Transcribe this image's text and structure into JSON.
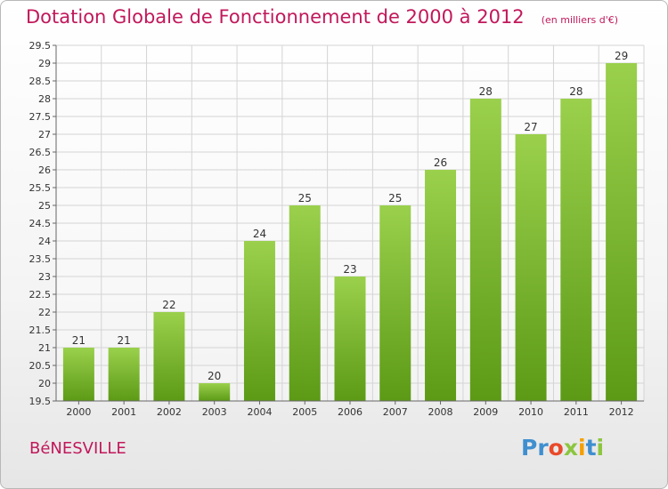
{
  "header": {
    "title": "Dotation Globale de Fonctionnement de 2000 à 2012",
    "unit": "(en milliers d'€)"
  },
  "footer": {
    "commune": "BéNESVILLE",
    "logo_letters": [
      "P",
      "r",
      "o",
      "x",
      "i",
      "t",
      "i"
    ],
    "logo_colors": [
      "#3f8fcf",
      "#3f8fcf",
      "#e94a2a",
      "#8cc63f",
      "#f5a000",
      "#3f8fcf",
      "#8cc63f"
    ]
  },
  "chart_data": {
    "type": "bar",
    "categories": [
      "2000",
      "2001",
      "2002",
      "2003",
      "2004",
      "2005",
      "2006",
      "2007",
      "2008",
      "2009",
      "2010",
      "2011",
      "2012"
    ],
    "values": [
      21,
      21,
      22,
      20,
      24,
      25,
      23,
      25,
      26,
      28,
      27,
      28,
      29
    ],
    "data_labels": [
      "21",
      "21",
      "22",
      "20",
      "24",
      "25",
      "23",
      "25",
      "26",
      "28",
      "27",
      "28",
      "29"
    ],
    "ylim": [
      19.5,
      29.5
    ],
    "yticks": [
      "19.5",
      "20",
      "20.5",
      "21",
      "21.5",
      "22",
      "22.5",
      "23",
      "23.5",
      "24",
      "24.5",
      "25",
      "25.5",
      "26",
      "26.5",
      "27",
      "27.5",
      "28",
      "28.5",
      "29",
      "29.5"
    ],
    "grid": true,
    "bar_color_top": "#9ad04c",
    "bar_color_bottom": "#5c9a16",
    "title_color": "#c1185b"
  }
}
